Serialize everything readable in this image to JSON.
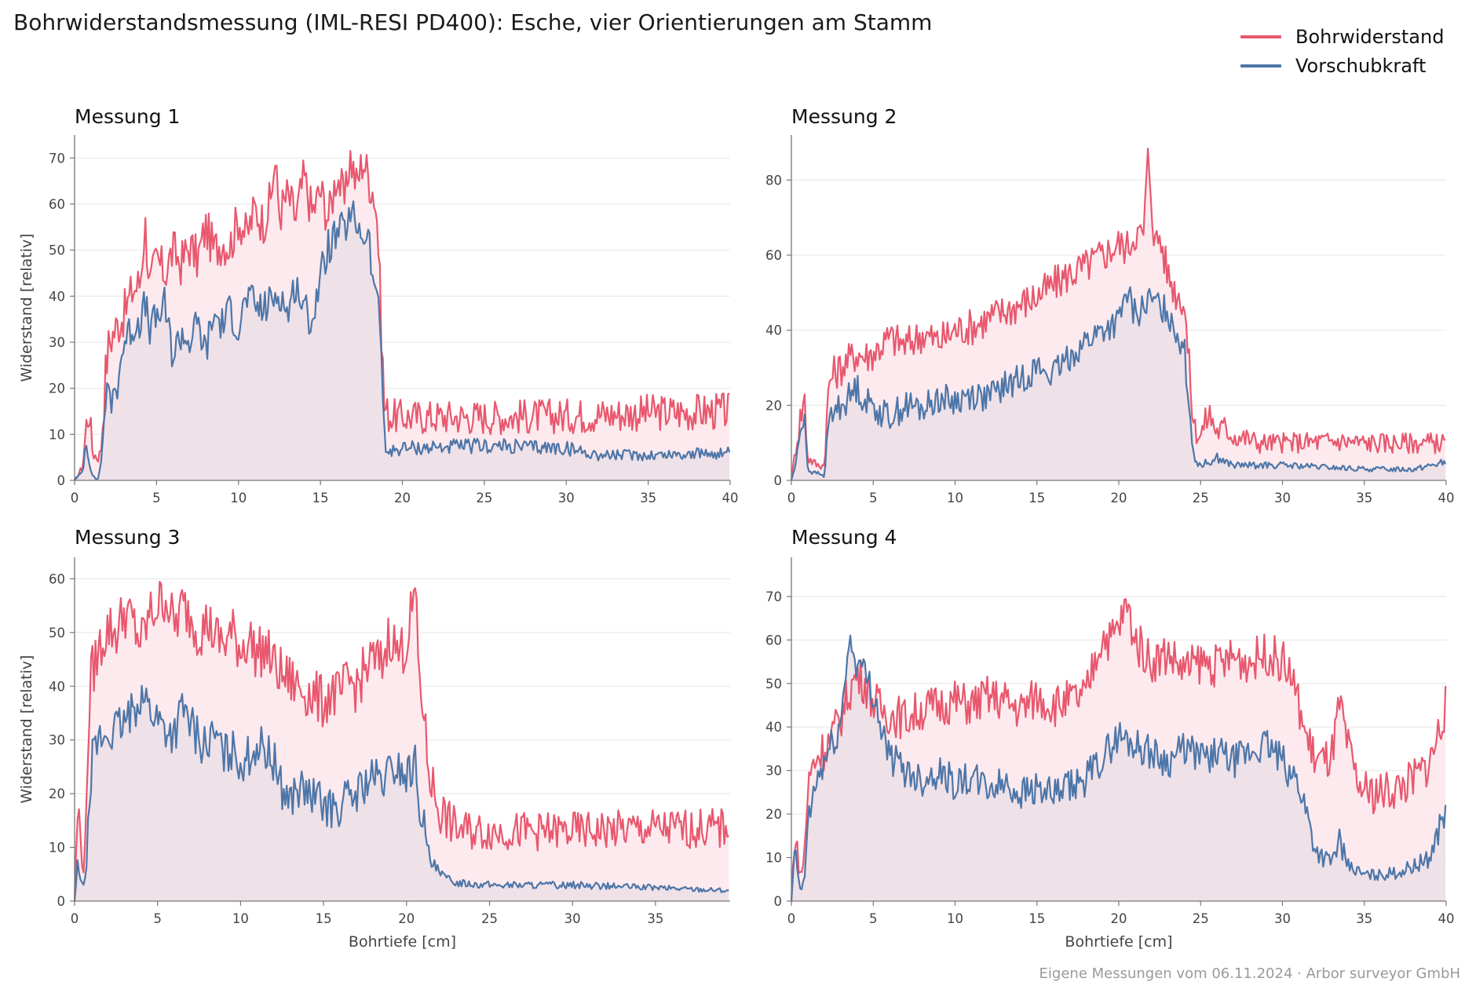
{
  "title": "Bohrwiderstandsmessung (IML-RESI PD400): Esche, vier Orientierungen am Stamm",
  "footer": "Eigene Messungen vom 06.11.2024 · Arbor surveyor GmbH",
  "colors": {
    "resistance": "#e8586e",
    "feed": "#4d76a8",
    "resistance_fill": "#fde8ec",
    "feed_fill": "#eadde5",
    "grid": "#e9e9e9",
    "axis": "#777777"
  },
  "legend": [
    {
      "label": "Bohrwiderstand",
      "color": "#e8586e"
    },
    {
      "label": "Vorschubkraft",
      "color": "#4d76a8"
    }
  ],
  "chart_data": [
    {
      "type": "area",
      "title": "Messung 1",
      "xlabel": "",
      "ylabel": "Widerstand [relativ]",
      "xlim": [
        0,
        40
      ],
      "ylim": [
        0,
        75
      ],
      "xticks": [
        0,
        5,
        10,
        15,
        20,
        25,
        30,
        35,
        40
      ],
      "yticks": [
        0,
        10,
        20,
        30,
        40,
        50,
        60,
        70
      ],
      "grid": "horizontal",
      "series": [
        {
          "name": "Bohrwiderstand",
          "x": [
            0,
            0.5,
            0.7,
            0.9,
            1.1,
            1.4,
            1.6,
            1.9,
            2.1,
            2.5,
            3,
            3.5,
            4,
            4.3,
            4.6,
            5,
            5.5,
            6,
            6.5,
            7,
            7.5,
            8,
            8.5,
            9,
            9.5,
            10,
            10.5,
            11,
            11.5,
            12,
            12.2,
            12.5,
            13,
            13.5,
            14,
            14.5,
            15,
            15.5,
            16,
            16.5,
            16.8,
            17.2,
            17.6,
            18,
            18.3,
            18.5,
            18.7,
            18.9,
            19.2,
            20,
            25,
            30,
            35,
            40
          ],
          "y": [
            0,
            3,
            12,
            15,
            6,
            5,
            6,
            24,
            30,
            33,
            36,
            41,
            43,
            56,
            42,
            48,
            45,
            50,
            47,
            51,
            48,
            55,
            50,
            52,
            51,
            57,
            53,
            59,
            56,
            61,
            70,
            58,
            62,
            57,
            66,
            58,
            63,
            57,
            67,
            60,
            71,
            64,
            70,
            65,
            62,
            55,
            35,
            16,
            14,
            13.8,
            13.8,
            14,
            14.7,
            15
          ]
        },
        {
          "name": "Vorschubkraft",
          "x": [
            0,
            0.5,
            0.7,
            0.9,
            1.1,
            1.4,
            1.6,
            1.9,
            2.1,
            2.5,
            3,
            3.5,
            4,
            4.3,
            4.6,
            5,
            5.5,
            6,
            6.5,
            7,
            7.5,
            8,
            8.5,
            9,
            9.5,
            10,
            10.5,
            11,
            11.5,
            12,
            12.5,
            13,
            13.5,
            14,
            14.5,
            15,
            15.5,
            16,
            16.5,
            17,
            17.5,
            18,
            18.3,
            18.5,
            18.7,
            19,
            20,
            25,
            30,
            32,
            35,
            40
          ],
          "y": [
            0,
            2,
            9,
            4,
            1,
            0,
            3,
            19,
            17,
            19,
            30,
            33,
            35,
            38,
            33,
            35,
            38,
            27,
            32,
            30,
            34,
            28,
            36,
            34,
            37,
            33,
            40,
            38,
            37,
            39,
            41,
            36,
            43,
            37,
            35,
            44,
            51,
            53,
            55,
            57,
            54,
            52,
            38,
            45,
            25,
            6,
            7,
            7.5,
            7,
            5.5,
            5.5,
            6
          ]
        }
      ]
    },
    {
      "type": "area",
      "title": "Messung 2",
      "xlabel": "",
      "ylabel": "",
      "xlim": [
        0,
        40
      ],
      "ylim": [
        0,
        92
      ],
      "xticks": [
        0,
        5,
        10,
        15,
        20,
        25,
        30,
        35,
        40
      ],
      "yticks": [
        0,
        20,
        40,
        60,
        80
      ],
      "grid": "horizontal",
      "series": [
        {
          "name": "Bohrwiderstand",
          "x": [
            0,
            0.3,
            0.6,
            0.8,
            1,
            1.3,
            1.6,
            2,
            2.3,
            2.5,
            3,
            3.5,
            4,
            4.5,
            5,
            6,
            7,
            8,
            9,
            10,
            11,
            12,
            13,
            14,
            15,
            16,
            17,
            18,
            19,
            20,
            20.5,
            21,
            21.5,
            21.8,
            22.2,
            22.5,
            23,
            23.5,
            24,
            24.3,
            24.6,
            25,
            25.5,
            26,
            26.5,
            27,
            28,
            28.5,
            30,
            33.5,
            35,
            40
          ],
          "y": [
            0,
            10,
            18,
            22,
            6,
            5,
            4,
            4,
            26,
            28,
            30,
            32,
            34,
            33,
            34,
            38,
            36,
            39,
            37,
            40,
            41,
            43,
            45,
            47,
            49,
            52,
            55,
            57,
            60,
            63,
            62,
            66,
            65,
            87,
            63,
            65,
            55,
            50,
            48,
            30,
            14,
            12,
            18,
            13,
            14,
            12,
            11,
            10,
            10,
            10.5,
            10,
            10
          ]
        },
        {
          "name": "Vorschubkraft",
          "x": [
            0,
            0.3,
            0.6,
            0.8,
            1,
            1.3,
            1.6,
            2,
            2.3,
            2.5,
            3,
            3.5,
            4,
            4.5,
            5,
            5.5,
            6,
            7,
            8,
            9,
            10,
            11,
            12,
            13,
            14,
            15,
            16,
            17,
            18,
            19,
            20,
            20.5,
            21,
            22,
            23,
            23.5,
            24,
            24.3,
            24.6,
            25,
            26,
            27,
            28,
            30,
            35,
            38,
            40
          ],
          "y": [
            0,
            5,
            15,
            18,
            3,
            2,
            2,
            1,
            16,
            18,
            20,
            22,
            25,
            21,
            20,
            18,
            17,
            20,
            19,
            22,
            21,
            23,
            22,
            25,
            27,
            30,
            28,
            33,
            37,
            40,
            42,
            50,
            44,
            48,
            45,
            40,
            35,
            20,
            6,
            4,
            6,
            4,
            4,
            4,
            3,
            3,
            5
          ]
        }
      ]
    },
    {
      "type": "area",
      "title": "Messung 3",
      "xlabel": "Bohrtiefe [cm]",
      "ylabel": "Widerstand [relativ]",
      "xlim": [
        0,
        39.5
      ],
      "ylim": [
        0,
        64
      ],
      "xticks": [
        0,
        5,
        10,
        15,
        20,
        25,
        30,
        35
      ],
      "yticks": [
        0,
        10,
        20,
        30,
        40,
        50,
        60
      ],
      "grid": "horizontal",
      "series": [
        {
          "name": "Bohrwiderstand",
          "x": [
            0,
            0.2,
            0.4,
            0.6,
            0.8,
            1,
            1.2,
            1.5,
            2,
            2.5,
            3,
            3.5,
            4,
            4.5,
            5,
            5.5,
            6,
            6.5,
            7,
            7.5,
            8,
            8.5,
            9,
            9.5,
            10,
            10.5,
            11,
            11.5,
            12,
            12.5,
            13,
            13.5,
            14,
            14.5,
            15,
            15.5,
            16,
            16.5,
            17,
            17.5,
            18,
            18.5,
            19,
            19.5,
            20,
            20.5,
            20.8,
            21,
            21.2,
            21.5,
            22,
            22.5,
            23,
            24,
            25,
            30,
            35,
            39,
            39.5
          ],
          "y": [
            0,
            18,
            10,
            5,
            30,
            42,
            44,
            47,
            51,
            50,
            54,
            52,
            48,
            53,
            55,
            57,
            51,
            55,
            53,
            50,
            52,
            49,
            48,
            50,
            47,
            49,
            46,
            47,
            44,
            42,
            41,
            40,
            39,
            38,
            37,
            39,
            38,
            41,
            40,
            43,
            45,
            44,
            50,
            46,
            48,
            58,
            40,
            37,
            28,
            22,
            17,
            15,
            13.5,
            13,
            13,
            13,
            13.5,
            13.5,
            15
          ]
        },
        {
          "name": "Vorschubkraft",
          "x": [
            0,
            0.2,
            0.4,
            0.6,
            0.8,
            1,
            1.2,
            1.5,
            2,
            2.5,
            3,
            3.5,
            4,
            4.5,
            5,
            5.5,
            6,
            6.5,
            7,
            7.5,
            8,
            8.5,
            9,
            9.5,
            10,
            10.5,
            11,
            11.5,
            12,
            12.5,
            13,
            13.5,
            14,
            14.5,
            15,
            15.5,
            16,
            16.5,
            17,
            17.5,
            18,
            18.5,
            19,
            19.5,
            20,
            20.5,
            20.8,
            21,
            21.2,
            21.5,
            22,
            22.5,
            23,
            25,
            30,
            35,
            39.5
          ],
          "y": [
            0,
            7,
            4,
            2,
            12,
            25,
            28,
            30,
            31,
            32,
            33,
            35,
            39,
            36,
            34,
            32,
            31,
            36,
            33,
            30,
            29,
            31,
            27,
            28,
            26,
            27,
            29,
            28,
            26,
            21,
            19,
            21,
            20,
            19,
            18,
            17,
            18,
            19,
            20,
            22,
            23,
            22,
            24,
            25,
            23,
            26,
            18,
            16,
            10,
            7,
            5,
            4,
            3.5,
            3,
            3,
            2.5,
            2
          ]
        }
      ]
    },
    {
      "type": "area",
      "title": "Messung 4",
      "xlabel": "Bohrtiefe [cm]",
      "ylabel": "",
      "xlim": [
        0,
        40
      ],
      "ylim": [
        0,
        79
      ],
      "xticks": [
        0,
        5,
        10,
        15,
        20,
        25,
        30,
        35,
        40
      ],
      "yticks": [
        0,
        10,
        20,
        30,
        40,
        50,
        60,
        70
      ],
      "grid": "horizontal",
      "series": [
        {
          "name": "Bohrwiderstand",
          "x": [
            0,
            0.2,
            0.4,
            0.6,
            0.8,
            1,
            1.2,
            1.5,
            2,
            2.5,
            3,
            3.5,
            4,
            4.5,
            5,
            5.5,
            6,
            7,
            8,
            9,
            10,
            11,
            12,
            13,
            14,
            15,
            16,
            17,
            18,
            18.5,
            19,
            19.5,
            20,
            20.5,
            21,
            22,
            23,
            24,
            25,
            26,
            27,
            28,
            29,
            30,
            30.5,
            31,
            31.5,
            32,
            32.5,
            33,
            33.5,
            34,
            34.5,
            35,
            36,
            37,
            38,
            39,
            40
          ],
          "y": [
            0,
            16,
            10,
            5,
            12,
            25,
            30,
            33,
            35,
            38,
            42,
            48,
            52,
            50,
            46,
            44,
            43,
            42,
            44,
            45,
            46,
            45,
            47,
            46,
            44,
            47,
            45,
            46,
            47,
            55,
            61,
            60,
            63,
            68,
            60,
            55,
            57,
            53,
            55,
            54,
            56,
            55,
            57,
            55,
            52,
            45,
            37,
            33,
            32,
            33,
            45,
            35,
            28,
            25,
            25,
            26,
            28,
            32,
            45
          ]
        },
        {
          "name": "Vorschubkraft",
          "x": [
            0,
            0.2,
            0.4,
            0.6,
            0.8,
            1,
            1.2,
            1.5,
            2,
            2.5,
            3,
            3.5,
            4,
            4.5,
            5,
            5.5,
            6,
            7,
            8,
            9,
            10,
            11,
            12,
            13,
            14,
            15,
            16,
            17,
            18,
            19,
            20,
            21,
            22,
            23,
            24,
            25,
            26,
            27,
            28,
            29,
            30,
            31,
            31.5,
            32,
            32.5,
            33,
            33.5,
            34,
            34.5,
            35,
            36,
            37,
            38,
            39,
            40
          ],
          "y": [
            0,
            12,
            6,
            2,
            5,
            18,
            22,
            27,
            32,
            36,
            40,
            60,
            55,
            52,
            48,
            40,
            33,
            30,
            28,
            30,
            27,
            28,
            26,
            27,
            25,
            26,
            24,
            26,
            28,
            33,
            38,
            36,
            34,
            32,
            35,
            33,
            34,
            32,
            34,
            36,
            32,
            27,
            20,
            12,
            10,
            9,
            14,
            8,
            7,
            6,
            6,
            6.5,
            8,
            10,
            22
          ]
        }
      ]
    }
  ]
}
